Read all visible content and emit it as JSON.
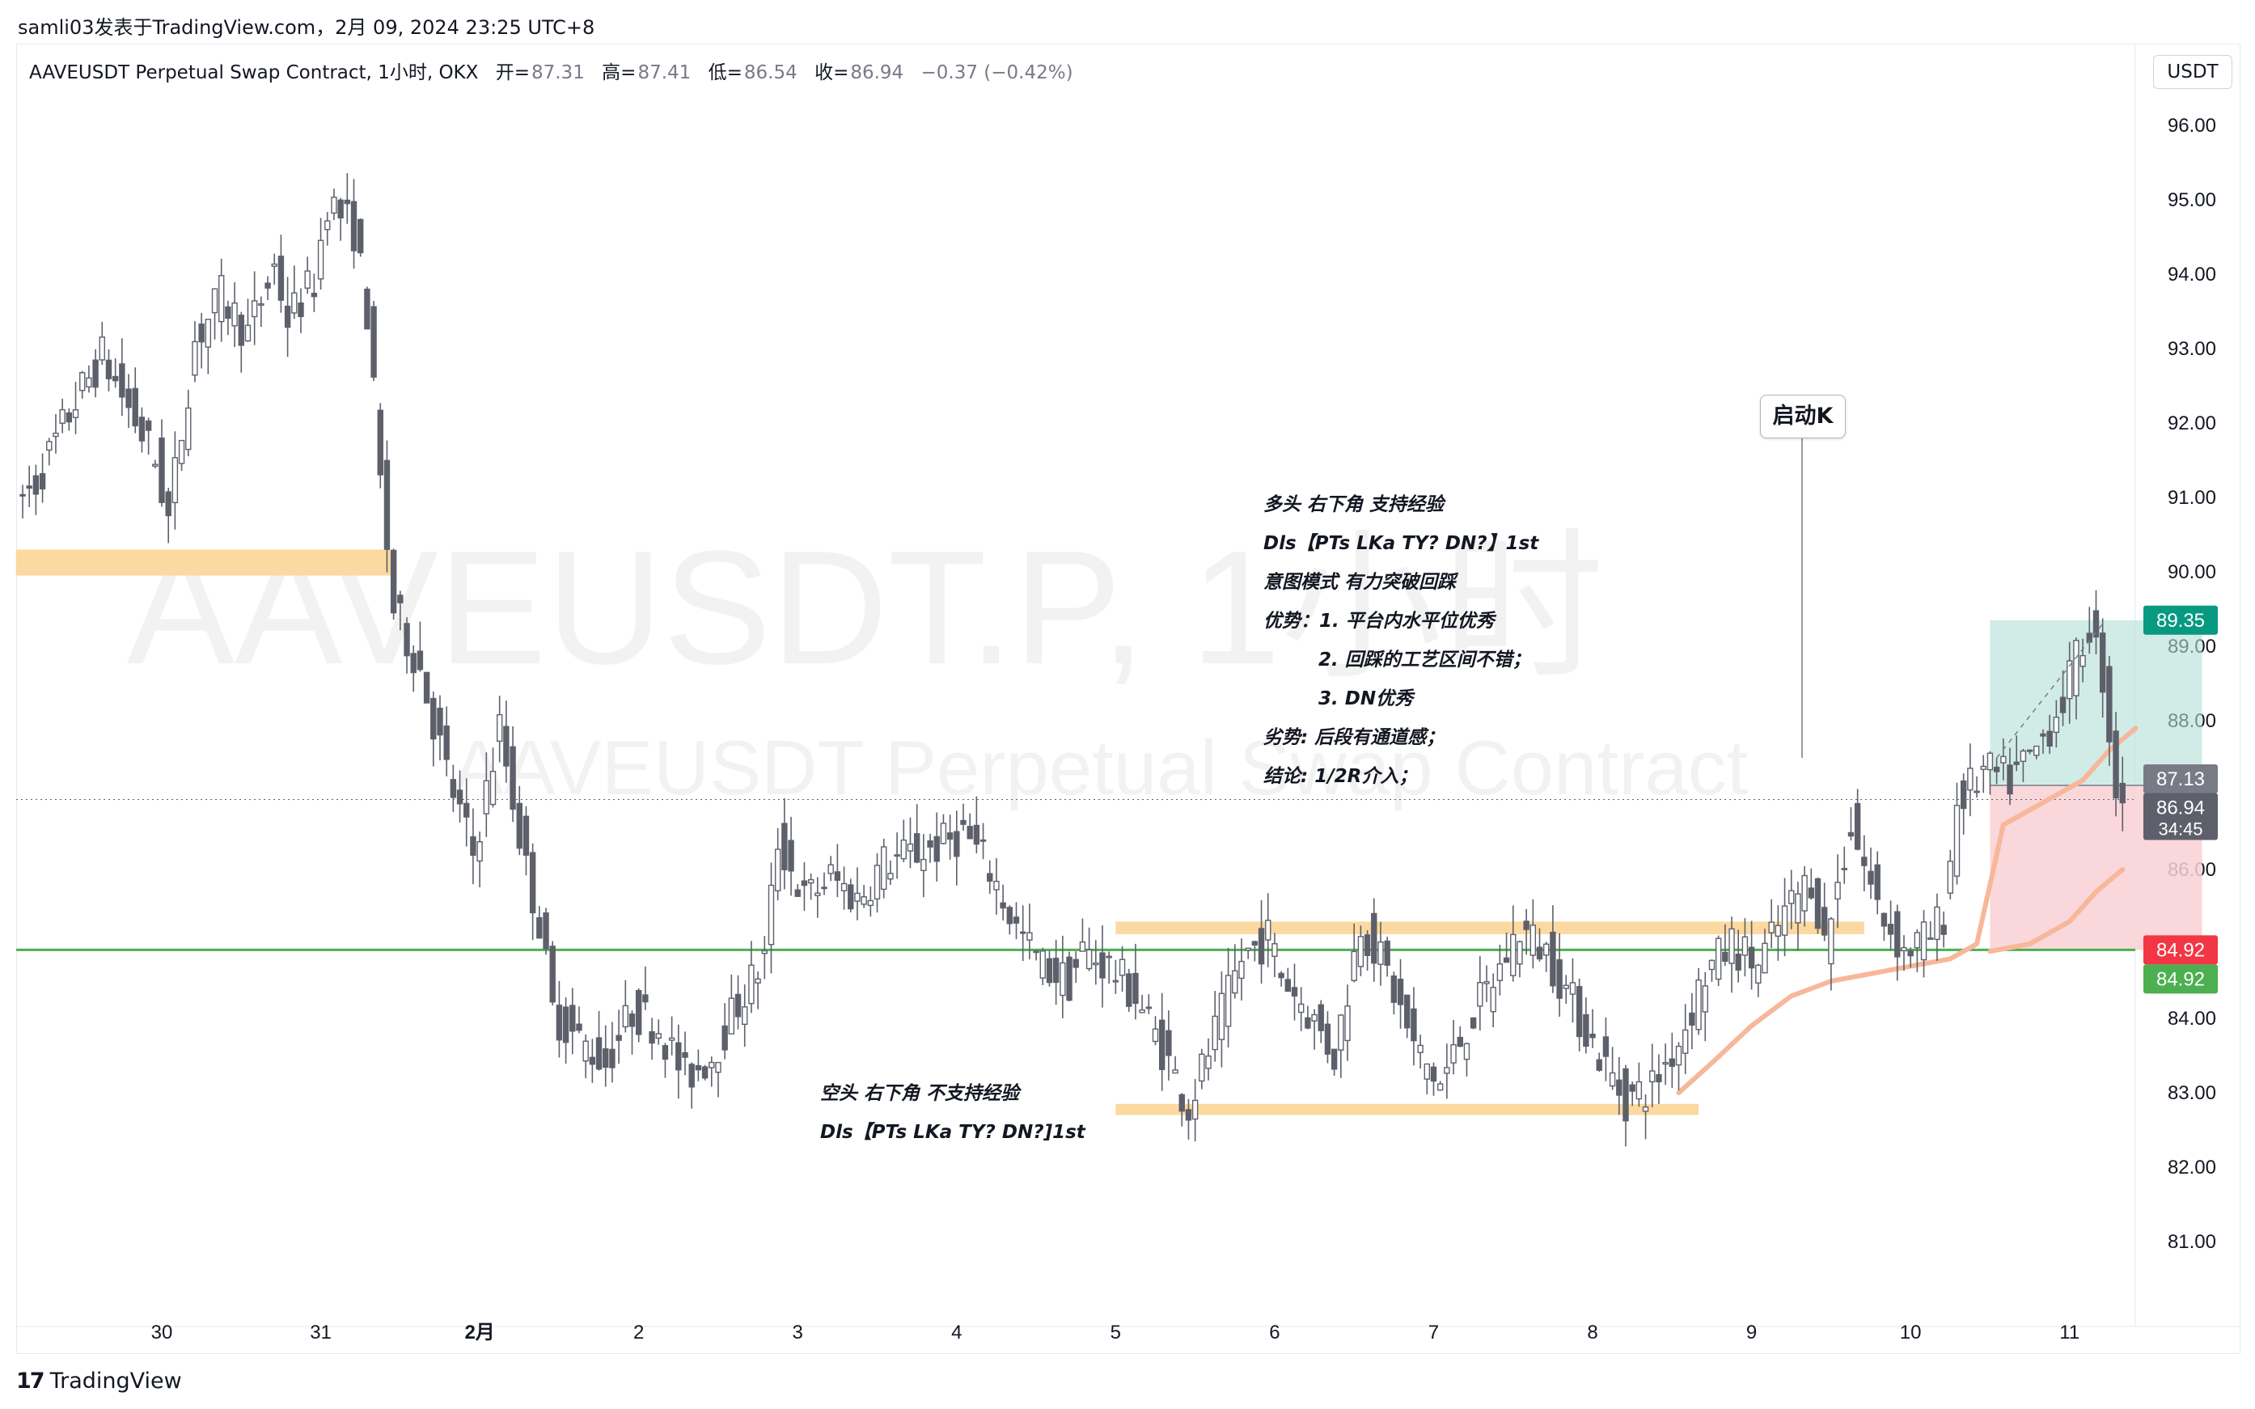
{
  "header": {
    "publisher_line": "samli03发表于TradingView.com，2月 09, 2024 23:25 UTC+8"
  },
  "legend": {
    "symbol": "AAVEUSDT Perpetual Swap Contract, 1小时, OKX",
    "open_label": "开=",
    "open": "87.31",
    "high_label": "高=",
    "high": "87.41",
    "low_label": "低=",
    "low": "86.54",
    "close_label": "收=",
    "close": "86.94",
    "change": "−0.37 (−0.42%)"
  },
  "currency_button": "USDT",
  "watermark": {
    "line1": "AAVEUSDT.P, 1小时",
    "line2": "AAVEUSDT Perpetual Swap Contract"
  },
  "footer": {
    "brand": "TradingView",
    "brand_mark": "17"
  },
  "annotations": {
    "start_k": "启动K",
    "long_notes": [
      "多头 右下角 支持经验",
      "Dls【PTs LKa TY? DN?】1st",
      "意图模式 有力突破回踩",
      "优势：1. 平台内水平位优秀",
      "2. 回踩的工艺区间不错；",
      "3. DN优秀",
      "劣势:   后段有通道感；",
      "结论:   1/2R介入；"
    ],
    "short_notes": [
      "空头 右下角 不支持经验",
      "Dls【PTs LKa TY? DN?]1st"
    ]
  },
  "price_labels": {
    "take_profit": {
      "value": "89.35",
      "color": "#089981"
    },
    "entry": {
      "value": "87.13",
      "color": "#787b86"
    },
    "last": {
      "value": "86.94",
      "countdown": "34:45",
      "color": "#5d606b"
    },
    "stop": {
      "value": "84.92",
      "color": "#f23645"
    },
    "level": {
      "value": "84.92",
      "color": "#4caf50"
    }
  },
  "colors": {
    "candle": "#5d606b",
    "zone": "#fcd9a0",
    "green_line": "#4caf50",
    "profit_zone": "#b2dfd6",
    "loss_zone": "#f9d0d4",
    "ema": "#f7b79a"
  },
  "chart_data": {
    "type": "candlestick",
    "ylim": [
      80.0,
      96.5
    ],
    "y_ticks": [
      "96.00",
      "95.00",
      "94.00",
      "93.00",
      "92.00",
      "91.00",
      "90.00",
      "89.00",
      "88.00",
      "87.00",
      "86.00",
      "85.00",
      "84.00",
      "83.00",
      "82.00",
      "81.00"
    ],
    "x_ticks": [
      {
        "label": "30",
        "hour": 0
      },
      {
        "label": "31",
        "hour": 24
      },
      {
        "label": "2月",
        "hour": 48,
        "bold": true
      },
      {
        "label": "2",
        "hour": 72
      },
      {
        "label": "3",
        "hour": 96
      },
      {
        "label": "4",
        "hour": 120
      },
      {
        "label": "5",
        "hour": 144
      },
      {
        "label": "6",
        "hour": 168
      },
      {
        "label": "7",
        "hour": 192
      },
      {
        "label": "8",
        "hour": 216
      },
      {
        "label": "9",
        "hour": 240
      },
      {
        "label": "10",
        "hour": 264
      },
      {
        "label": "11",
        "hour": 288
      }
    ],
    "x_range_hours": [
      -22,
      312
    ],
    "price_path": [
      [
        -22,
        90.8
      ],
      [
        -18,
        91.2
      ],
      [
        -12,
        92.3
      ],
      [
        -8,
        92.9
      ],
      [
        -4,
        92.2
      ],
      [
        0,
        91.5
      ],
      [
        2,
        90.7
      ],
      [
        6,
        93.1
      ],
      [
        10,
        93.7
      ],
      [
        14,
        93.2
      ],
      [
        18,
        94.1
      ],
      [
        20,
        93.4
      ],
      [
        24,
        93.9
      ],
      [
        26,
        95.0
      ],
      [
        30,
        94.6
      ],
      [
        32,
        93.5
      ],
      [
        34,
        91.2
      ],
      [
        36,
        89.5
      ],
      [
        40,
        88.7
      ],
      [
        44,
        87.3
      ],
      [
        48,
        86.2
      ],
      [
        52,
        87.9
      ],
      [
        56,
        86.0
      ],
      [
        58,
        85.3
      ],
      [
        60,
        84.1
      ],
      [
        64,
        83.7
      ],
      [
        68,
        83.4
      ],
      [
        72,
        84.1
      ],
      [
        76,
        83.9
      ],
      [
        80,
        83.2
      ],
      [
        84,
        83.5
      ],
      [
        88,
        84.2
      ],
      [
        92,
        84.8
      ],
      [
        94,
        86.4
      ],
      [
        98,
        85.6
      ],
      [
        102,
        85.9
      ],
      [
        106,
        85.6
      ],
      [
        110,
        86.1
      ],
      [
        114,
        86.2
      ],
      [
        118,
        86.3
      ],
      [
        122,
        86.5
      ],
      [
        126,
        86.0
      ],
      [
        130,
        85.2
      ],
      [
        134,
        84.7
      ],
      [
        138,
        84.5
      ],
      [
        140,
        84.9
      ],
      [
        144,
        84.7
      ],
      [
        148,
        84.3
      ],
      [
        152,
        83.6
      ],
      [
        156,
        82.8
      ],
      [
        160,
        83.8
      ],
      [
        164,
        84.8
      ],
      [
        168,
        85.1
      ],
      [
        170,
        84.6
      ],
      [
        174,
        84.1
      ],
      [
        178,
        83.5
      ],
      [
        182,
        85.3
      ],
      [
        186,
        84.6
      ],
      [
        190,
        83.6
      ],
      [
        194,
        83.1
      ],
      [
        198,
        83.9
      ],
      [
        202,
        84.5
      ],
      [
        206,
        85.2
      ],
      [
        210,
        84.9
      ],
      [
        214,
        84.2
      ],
      [
        218,
        83.5
      ],
      [
        222,
        82.9
      ],
      [
        226,
        83.1
      ],
      [
        230,
        83.7
      ],
      [
        234,
        84.6
      ],
      [
        238,
        85.0
      ],
      [
        242,
        84.7
      ],
      [
        246,
        85.4
      ],
      [
        250,
        85.9
      ],
      [
        252,
        85.0
      ],
      [
        256,
        86.6
      ],
      [
        260,
        85.5
      ],
      [
        264,
        84.9
      ],
      [
        268,
        85.1
      ],
      [
        270,
        85.4
      ],
      [
        272,
        86.9
      ],
      [
        276,
        87.3
      ],
      [
        280,
        87.2
      ],
      [
        284,
        87.6
      ],
      [
        288,
        88.3
      ],
      [
        292,
        89.3
      ],
      [
        294,
        88.6
      ],
      [
        296,
        87.1
      ],
      [
        298,
        86.94
      ]
    ],
    "zones": [
      {
        "from_hour": -22,
        "to_hour": 35,
        "y_low": 89.95,
        "y_high": 90.3
      },
      {
        "from_hour": 144,
        "to_hour": 257,
        "y_low": 85.13,
        "y_high": 85.3
      },
      {
        "from_hour": 144,
        "to_hour": 232,
        "y_low": 82.7,
        "y_high": 82.85
      }
    ],
    "horizontal_line": {
      "y": 84.92
    },
    "position": {
      "from_hour": 276,
      "to_hour": 308,
      "entry": 87.13,
      "target": 89.35,
      "stop": 84.92
    },
    "last_price_line": 86.94,
    "ema_path": [
      [
        229,
        83.0
      ],
      [
        234,
        83.4
      ],
      [
        240,
        83.9
      ],
      [
        246,
        84.3
      ],
      [
        252,
        84.5
      ],
      [
        258,
        84.6
      ],
      [
        264,
        84.7
      ],
      [
        270,
        84.8
      ],
      [
        274,
        85.0
      ],
      [
        278,
        86.6
      ],
      [
        282,
        86.8
      ],
      [
        286,
        87.0
      ],
      [
        290,
        87.2
      ],
      [
        294,
        87.6
      ],
      [
        298,
        87.9
      ]
    ],
    "ema_path2": [
      [
        276,
        84.9
      ],
      [
        282,
        85.0
      ],
      [
        288,
        85.3
      ],
      [
        292,
        85.7
      ],
      [
        296,
        86.0
      ]
    ]
  }
}
